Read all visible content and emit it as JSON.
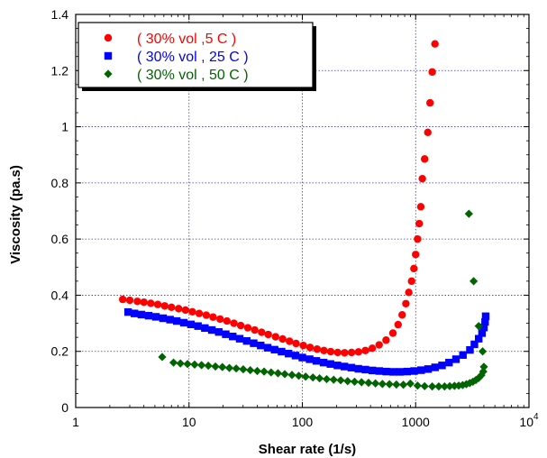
{
  "chart_data": {
    "type": "scatter",
    "xlabel": "Shear rate (1/s)",
    "ylabel": "Viscosity (pa.s)",
    "xscale": "log",
    "xlim": [
      1,
      10000
    ],
    "ylim": [
      0,
      1.4
    ],
    "grid": true,
    "grid_style": "dotted",
    "legend_position": "top-left",
    "x_ticks": [
      {
        "value": 1,
        "label": "1"
      },
      {
        "value": 10,
        "label": "10"
      },
      {
        "value": 100,
        "label": "100"
      },
      {
        "value": 1000,
        "label": "1000"
      },
      {
        "value": 10000,
        "label": "10",
        "sup": "4"
      }
    ],
    "y_ticks": [
      {
        "value": 0,
        "label": "0"
      },
      {
        "value": 0.2,
        "label": "0.2"
      },
      {
        "value": 0.4,
        "label": "0.4"
      },
      {
        "value": 0.6,
        "label": "0.6"
      },
      {
        "value": 0.8,
        "label": "0.8"
      },
      {
        "value": 1,
        "label": "1"
      },
      {
        "value": 1.2,
        "label": "1.2"
      },
      {
        "value": 1.4,
        "label": "1.4"
      }
    ],
    "series": [
      {
        "name": "( 30% vol ,5 C )",
        "color": "#ff0000",
        "marker": "circle",
        "x": [
          2.6,
          3.0,
          3.5,
          4.0,
          4.6,
          5.3,
          6.1,
          7.0,
          8.1,
          9.3,
          10.7,
          12.3,
          14.2,
          16.3,
          18.8,
          21.6,
          24.9,
          28.6,
          33,
          38,
          43.7,
          50,
          58,
          67,
          77,
          88,
          102,
          117,
          135,
          155,
          178,
          205,
          236,
          272,
          313,
          360,
          414,
          476,
          548,
          630,
          700,
          760,
          820,
          870,
          920,
          965,
          1000,
          1040,
          1075,
          1110,
          1145,
          1200,
          1280,
          1340,
          1400,
          1480
        ],
        "y": [
          0.385,
          0.382,
          0.378,
          0.375,
          0.371,
          0.367,
          0.362,
          0.357,
          0.352,
          0.347,
          0.341,
          0.335,
          0.329,
          0.322,
          0.315,
          0.308,
          0.3,
          0.292,
          0.284,
          0.276,
          0.268,
          0.26,
          0.252,
          0.244,
          0.236,
          0.228,
          0.221,
          0.214,
          0.208,
          0.203,
          0.199,
          0.196,
          0.195,
          0.196,
          0.198,
          0.203,
          0.211,
          0.223,
          0.24,
          0.265,
          0.295,
          0.33,
          0.37,
          0.41,
          0.45,
          0.495,
          0.545,
          0.6,
          0.655,
          0.715,
          0.815,
          0.885,
          0.98,
          1.085,
          1.195,
          1.295
        ]
      },
      {
        "name": "( 30% vol , 25 C )",
        "color": "#0000ff",
        "marker": "square",
        "x": [
          2.9,
          3.3,
          3.8,
          4.4,
          5.1,
          5.9,
          6.8,
          7.8,
          9.0,
          10.4,
          12.0,
          13.8,
          15.9,
          18.3,
          21.1,
          24.3,
          28.0,
          32.3,
          37.2,
          42.9,
          49.4,
          56.9,
          65.6,
          75.6,
          87.1,
          100,
          116,
          133,
          154,
          177,
          204,
          235,
          271,
          312,
          360,
          414,
          477,
          550,
          634,
          730,
          841,
          969,
          1117,
          1287,
          1483,
          1709,
          1969,
          2269,
          2614,
          3012,
          3300,
          3600,
          3850,
          4000,
          4100,
          4150
        ],
        "y": [
          0.34,
          0.335,
          0.331,
          0.327,
          0.323,
          0.318,
          0.313,
          0.308,
          0.302,
          0.296,
          0.29,
          0.283,
          0.276,
          0.269,
          0.261,
          0.253,
          0.245,
          0.237,
          0.229,
          0.221,
          0.213,
          0.206,
          0.199,
          0.192,
          0.185,
          0.178,
          0.172,
          0.166,
          0.16,
          0.155,
          0.15,
          0.146,
          0.142,
          0.138,
          0.135,
          0.132,
          0.13,
          0.128,
          0.127,
          0.127,
          0.128,
          0.13,
          0.133,
          0.137,
          0.143,
          0.15,
          0.16,
          0.172,
          0.187,
          0.205,
          0.225,
          0.245,
          0.265,
          0.285,
          0.305,
          0.325
        ]
      },
      {
        "name": "( 30% vol , 50 C )",
        "color": "#006400",
        "marker": "diamond",
        "x": [
          5.8,
          7.3,
          8.4,
          9.7,
          11.2,
          12.9,
          14.8,
          17.1,
          19.7,
          22.7,
          26.1,
          30.1,
          34.7,
          40,
          46,
          53,
          61,
          70,
          81,
          93,
          107,
          124,
          142,
          164,
          189,
          218,
          251,
          289,
          333,
          384,
          442,
          509,
          587,
          676,
          779,
          897,
          1040,
          1200,
          1400,
          1600,
          1800,
          2000,
          2200,
          2400,
          2600,
          2800,
          3000,
          3200,
          3400,
          3600,
          3800,
          3950,
          4000,
          3900,
          3600,
          3250,
          2950
        ],
        "y": [
          0.18,
          0.16,
          0.157,
          0.155,
          0.153,
          0.151,
          0.149,
          0.146,
          0.144,
          0.141,
          0.139,
          0.136,
          0.133,
          0.13,
          0.128,
          0.125,
          0.122,
          0.119,
          0.116,
          0.113,
          0.11,
          0.107,
          0.104,
          0.101,
          0.099,
          0.097,
          0.094,
          0.092,
          0.09,
          0.088,
          0.086,
          0.084,
          0.083,
          0.082,
          0.081,
          0.085,
          0.078,
          0.076,
          0.075,
          0.075,
          0.075,
          0.076,
          0.077,
          0.078,
          0.08,
          0.083,
          0.087,
          0.092,
          0.098,
          0.105,
          0.115,
          0.128,
          0.145,
          0.2,
          0.29,
          0.45,
          0.69
        ]
      }
    ]
  }
}
